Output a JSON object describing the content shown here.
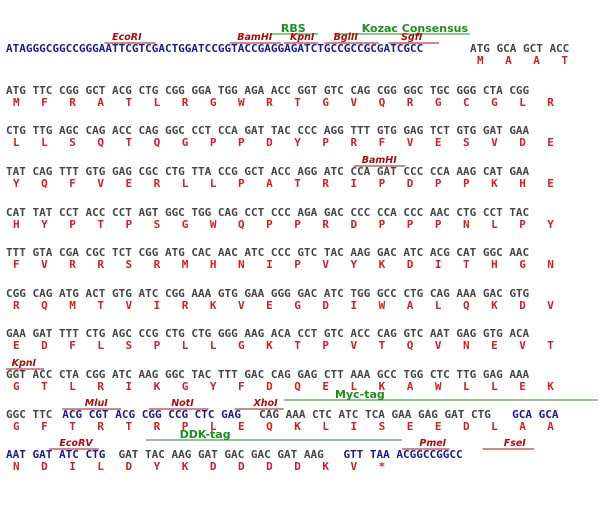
{
  "colors": {
    "dna": "#444444",
    "vector_dna": "#1a1a8c",
    "amino_acid": "#d02020",
    "restriction_site": "#a01010",
    "feature": "#1e8c1e"
  },
  "blocks": [
    {
      "features": [
        {
          "name": "RBS",
          "col": 39.1
        },
        {
          "name": "Kozac Consensus",
          "col": 50.6
        }
      ],
      "sites": [
        {
          "name": "EcoRI",
          "col": 15.1
        },
        {
          "name": "BamHI",
          "col": 32.9
        },
        {
          "name": "KpnI",
          "col": 40.4
        },
        {
          "name": "BglII",
          "col": 46.6
        },
        {
          "name": "SgfI",
          "col": 56.2
        }
      ],
      "site_bars": [
        [
          14.0,
          21.3
        ],
        [
          31.8,
          39.1
        ],
        [
          39.5,
          44.4
        ],
        [
          45.3,
          53.0
        ],
        [
          54.4,
          61.6
        ]
      ],
      "feature_bars": [
        [
          37.8,
          44.4
        ],
        [
          46.6,
          66.0
        ]
      ],
      "segments": [
        {
          "text": "ATAGGGCGGCCGGGAATTCGTCGACTGGATCCGGTACCGAGGAGATCTGCCGCCGCGATCGCC",
          "col": 0,
          "style": "vector"
        },
        {
          "text": "ATG GCA GCT ACC",
          "col": 66,
          "style": "dna"
        }
      ],
      "aa": [
        "M",
        "A",
        "A",
        "T"
      ],
      "aa_start": 66
    },
    {
      "dna": "ATG TTC CGG GCT ACG CTG CGG GGA TGG AGA ACC GGT GTC CAG CGG GGC TGC GGG CTA CGG",
      "aa": [
        "M",
        "F",
        "R",
        "A",
        "T",
        "L",
        "R",
        "G",
        "W",
        "R",
        "T",
        "G",
        "V",
        "Q",
        "R",
        "G",
        "C",
        "G",
        "L",
        "R"
      ]
    },
    {
      "dna": "CTG TTG AGC CAG ACC CAG GGC CCT CCA GAT TAC CCC AGG TTT GTG GAG TCT GTG GAT GAA",
      "aa": [
        "L",
        "L",
        "S",
        "Q",
        "T",
        "Q",
        "G",
        "P",
        "P",
        "D",
        "Y",
        "P",
        "R",
        "F",
        "V",
        "E",
        "S",
        "V",
        "D",
        "E"
      ]
    },
    {
      "sites": [
        {
          "name": "BamHI",
          "col": 50.6
        }
      ],
      "site_bars": [
        [
          49.5,
          56.8
        ]
      ],
      "dna": "TAT CAG TTT GTG GAG CGC CTG TTA CCG GCT ACC AGG ATC CCA GAT CCC CCA AAG CAT GAA",
      "aa": [
        "Y",
        "Q",
        "F",
        "V",
        "E",
        "R",
        "L",
        "L",
        "P",
        "A",
        "T",
        "R",
        "I",
        "P",
        "D",
        "P",
        "P",
        "K",
        "H",
        "E"
      ]
    },
    {
      "dna": "CAT TAT CCT ACC CCT AGT GGC TGG CAG CCT CCC AGA GAC CCC CCA CCC AAC CTG CCT TAC",
      "aa": [
        "H",
        "Y",
        "P",
        "T",
        "P",
        "S",
        "G",
        "W",
        "Q",
        "P",
        "P",
        "R",
        "D",
        "P",
        "P",
        "P",
        "N",
        "L",
        "P",
        "Y"
      ]
    },
    {
      "dna": "TTT GTA CGA CGC TCT CGG ATG CAC AAC ATC CCC GTC TAC AAG GAC ATC ACG CAT GGC AAC",
      "aa": [
        "F",
        "V",
        "R",
        "R",
        "S",
        "R",
        "M",
        "H",
        "N",
        "I",
        "P",
        "V",
        "Y",
        "K",
        "D",
        "I",
        "T",
        "H",
        "G",
        "N"
      ]
    },
    {
      "dna": "CGG CAG ATG ACT GTG ATC CGG AAA GTG GAA GGG GAC ATC TGG GCC CTG CAG AAA GAC GTG",
      "aa": [
        "R",
        "Q",
        "M",
        "T",
        "V",
        "I",
        "R",
        "K",
        "V",
        "E",
        "G",
        "D",
        "I",
        "W",
        "A",
        "L",
        "Q",
        "K",
        "D",
        "V"
      ]
    },
    {
      "dna": "GAA GAT TTT CTG AGC CCG CTG CTG GGG AAG ACA CCT GTC ACC CAG GTC AAT GAG GTG ACA",
      "aa": [
        "E",
        "D",
        "F",
        "L",
        "S",
        "P",
        "L",
        "L",
        "G",
        "K",
        "T",
        "P",
        "V",
        "T",
        "Q",
        "V",
        "N",
        "E",
        "V",
        "T"
      ]
    },
    {
      "sites": [
        {
          "name": "KpnI",
          "col": 0.8
        }
      ],
      "site_bars": [
        [
          0,
          5.4
        ]
      ],
      "dna": "GGT ACC CTA CGG ATC AAG GGC TAC TTT GAC CAG GAG CTT AAA GCC TGG CTC TTG GAG AAA",
      "aa": [
        "G",
        "T",
        "L",
        "R",
        "I",
        "K",
        "G",
        "Y",
        "F",
        "D",
        "Q",
        "E",
        "L",
        "K",
        "A",
        "W",
        "L",
        "L",
        "E",
        "K"
      ]
    },
    {
      "sites": [
        {
          "name": "MluI",
          "col": 11.2
        },
        {
          "name": "NotI",
          "col": 23.5
        },
        {
          "name": "XhoI",
          "col": 35.2
        }
      ],
      "site_bars": [
        [
          8.0,
          16.4
        ],
        [
          20.3,
          28.8
        ],
        [
          32.5,
          39.5
        ]
      ],
      "features": [
        {
          "name": "Myc-tag",
          "col": 46.8
        }
      ],
      "feature_bars": [
        [
          39.5,
          84.2
        ]
      ],
      "segments": [
        {
          "text": "GGC TTC",
          "col": 0,
          "style": "dna"
        },
        {
          "text": "ACG CGT ACG CGG CCG CTC GAG",
          "col": 8,
          "style": "vector"
        },
        {
          "text": "CAG AAA CTC ATC TCA GAA GAG GAT CTG",
          "col": 36,
          "style": "dna"
        },
        {
          "text": "GCA GCA",
          "col": 72,
          "style": "vector"
        }
      ],
      "aa": [
        "G",
        "F",
        "T",
        "R",
        "T",
        "R",
        "P",
        "L",
        "E",
        "Q",
        "K",
        "L",
        "I",
        "S",
        "E",
        "E",
        "D",
        "L",
        "A",
        "A"
      ]
    },
    {
      "sites": [
        {
          "name": "EcoRV",
          "col": 7.6
        },
        {
          "name": "PmeI",
          "col": 58.8
        },
        {
          "name": "FseI",
          "col": 70.8
        }
      ],
      "site_bars": [
        [
          6.1,
          13.2
        ],
        [
          56.3,
          63.1
        ],
        [
          67.8,
          75.1
        ]
      ],
      "features": [
        {
          "name": "DDK-tag",
          "col": 24.7
        }
      ],
      "feature_bars": [
        [
          19.9,
          56.3
        ]
      ],
      "segments": [
        {
          "text": "AAT GAT ATC CTG",
          "col": 0,
          "style": "vector"
        },
        {
          "text": "GAT TAC AAG GAT GAC GAC GAT AAG",
          "col": 16,
          "style": "dna"
        },
        {
          "text": "GTT TAA ACGGCCGGCC",
          "col": 48,
          "style": "vector"
        }
      ],
      "aa": [
        "N",
        "D",
        "I",
        "L",
        "D",
        "Y",
        "K",
        "D",
        "D",
        "D",
        "D",
        "K",
        "V",
        "*"
      ]
    }
  ]
}
